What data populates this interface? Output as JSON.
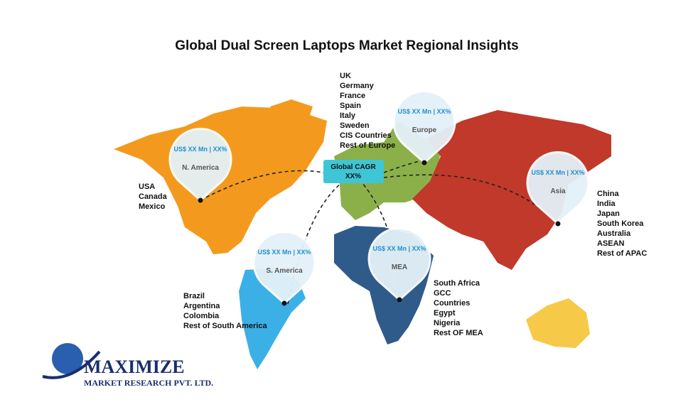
{
  "title": "Global Dual Screen Laptops Market Regional Insights",
  "global_cagr": {
    "label": "Global CAGR",
    "value": "XX%"
  },
  "regions": [
    {
      "name": "N. America",
      "value": "US$ XX Mn | XX%",
      "countries": [
        "USA",
        "Canada",
        "Mexico"
      ]
    },
    {
      "name": "Europe",
      "value": "US$ XX Mn | XX%",
      "countries": [
        "UK",
        "Germany",
        "France",
        "Spain",
        "Italy",
        "Sweden",
        "CIS Countries",
        "Rest of Europe"
      ]
    },
    {
      "name": "Asia",
      "value": "US$ XX Mn | XX%",
      "countries": [
        "China",
        "India",
        "Japan",
        "South Korea",
        "Australia",
        "ASEAN",
        "Rest of APAC"
      ]
    },
    {
      "name": "S. America",
      "value": "US$ XX Mn | XX%",
      "countries": [
        "Brazil",
        "Argentina",
        "Colombia",
        "Rest of South America"
      ]
    },
    {
      "name": "MEA",
      "value": "US$ XX Mn | XX%",
      "countries": [
        "South Africa",
        "GCC",
        "Countries",
        "Egypt",
        "Nigeria",
        "Rest OF MEA"
      ]
    }
  ],
  "logo": {
    "name": "MAXIMIZE",
    "tagline": "MARKET RESEARCH PVT. LTD."
  }
}
